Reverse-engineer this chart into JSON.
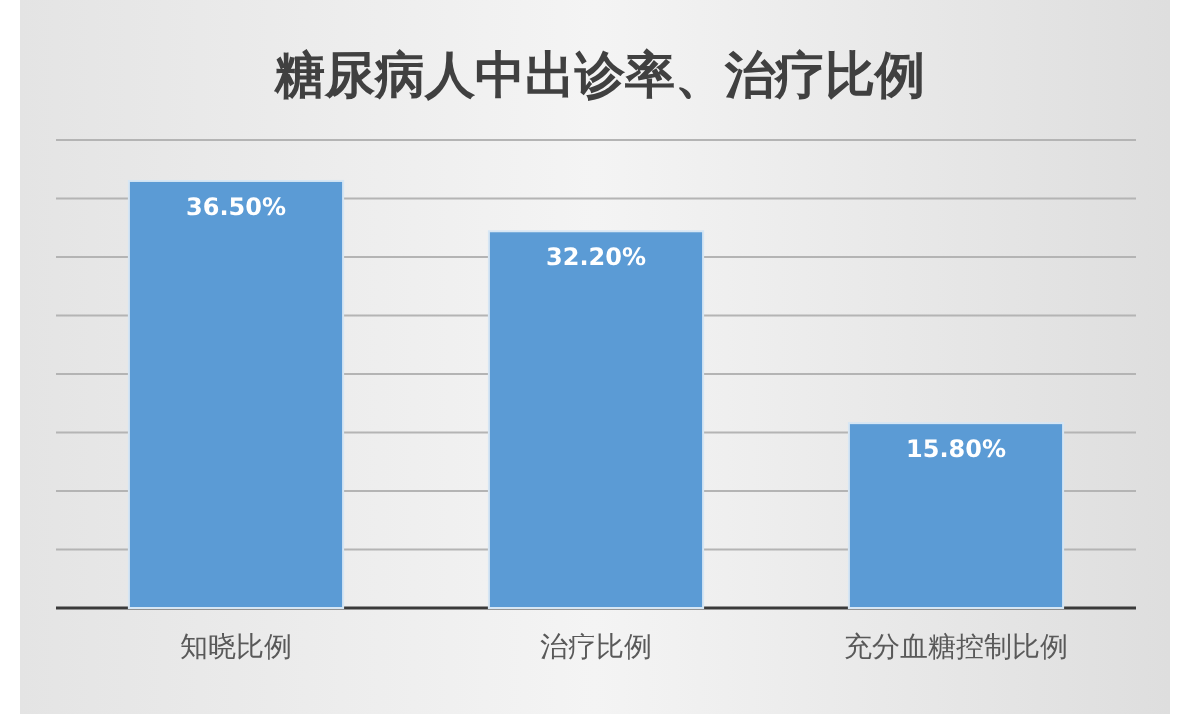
{
  "chart_data": {
    "type": "bar",
    "title": "糖尿病人中出诊率、治疗比例",
    "categories": [
      "知晓比例",
      "治疗比例",
      "充分血糖控制比例"
    ],
    "values": [
      36.5,
      32.2,
      15.8
    ],
    "value_labels": [
      "36.50%",
      "32.20%",
      "15.80%"
    ],
    "color": "#5b9bd5",
    "ylim": [
      0,
      40
    ],
    "yticks": [
      {
        "value": 0,
        "label": null
      },
      {
        "value": 5,
        "label": null
      },
      {
        "value": 10,
        "label": null
      },
      {
        "value": 15,
        "label": null
      },
      {
        "value": 20,
        "label": null
      },
      {
        "value": 25,
        "label": null
      },
      {
        "value": 30,
        "label": null
      },
      {
        "value": 35,
        "label": null
      },
      {
        "value": 40,
        "label": null
      }
    ],
    "grid": "y",
    "tick_labels": "x"
  }
}
